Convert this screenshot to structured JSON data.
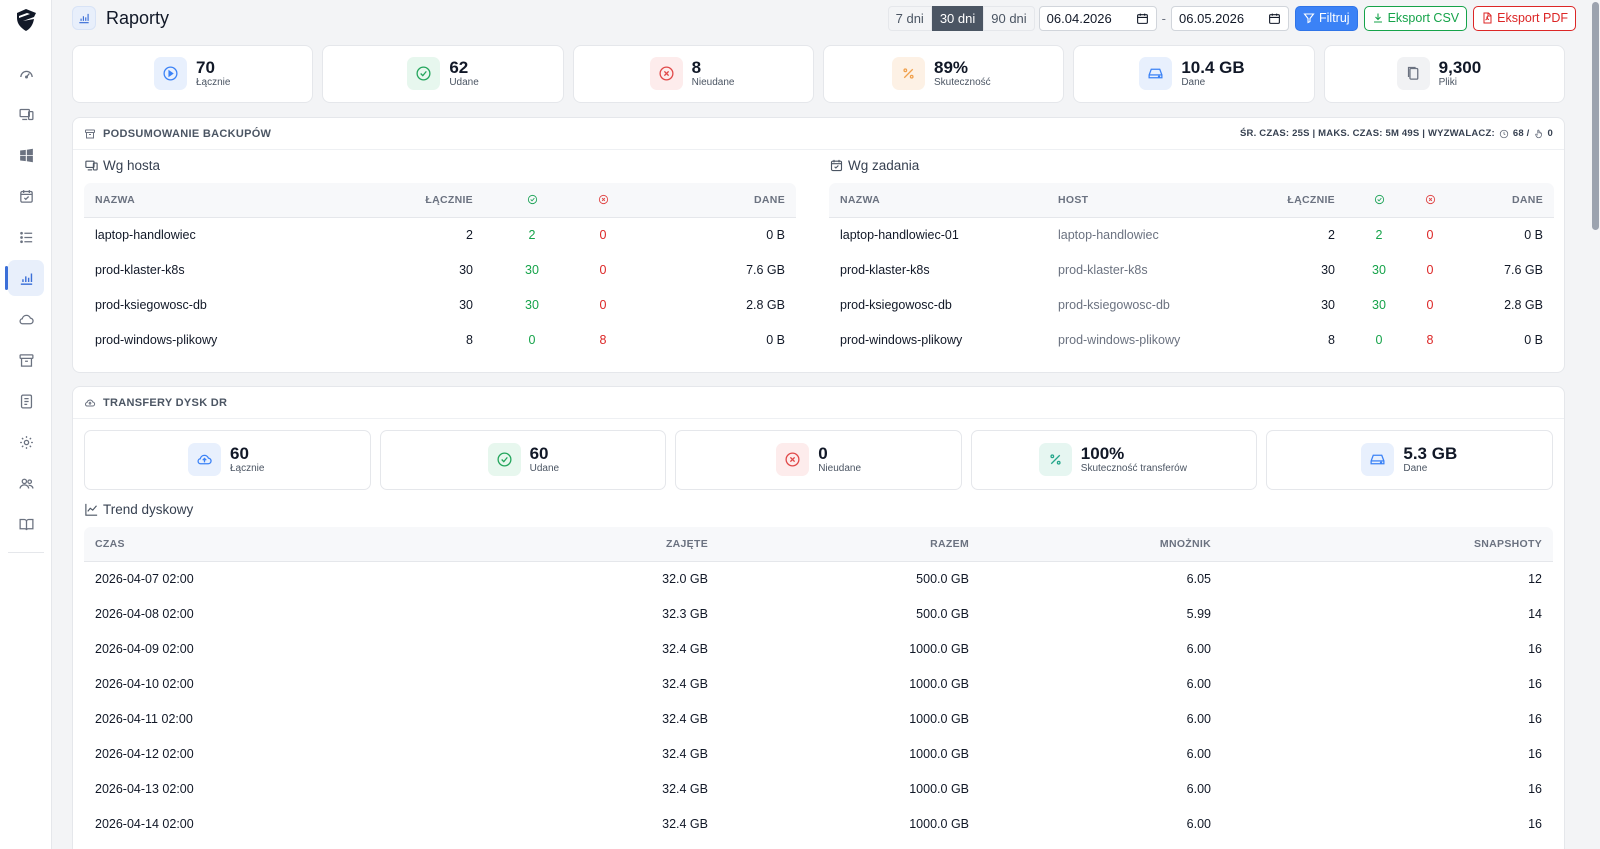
{
  "header": {
    "title": "Raporty",
    "ranges": [
      "7 dni",
      "30 dni",
      "90 dni"
    ],
    "active_range": "30 dni",
    "date_from": "06.04.2026",
    "date_to": "06.05.2026",
    "date_separator": "-",
    "filter_label": "Filtruj",
    "csv_label": "Eksport CSV",
    "pdf_label": "Eksport PDF"
  },
  "stats": [
    {
      "value": "70",
      "label": "Łącznie",
      "icon": "play-circle-icon",
      "bg": "#e8f0fd",
      "color": "#3b82f6"
    },
    {
      "value": "62",
      "label": "Udane",
      "icon": "check-circle-icon",
      "bg": "#e7f7ee",
      "color": "#22a55b"
    },
    {
      "value": "8",
      "label": "Nieudane",
      "icon": "x-circle-icon",
      "bg": "#fdecec",
      "color": "#e04848"
    },
    {
      "value": "89%",
      "label": "Skuteczność",
      "icon": "percent-icon",
      "bg": "#fdf1e5",
      "color": "#f0a04b"
    },
    {
      "value": "10.4 GB",
      "label": "Dane",
      "icon": "drive-icon",
      "bg": "#e8f0fd",
      "color": "#3b82f6"
    },
    {
      "value": "9,300",
      "label": "Pliki",
      "icon": "files-icon",
      "bg": "#f1f2f4",
      "color": "#6b7280"
    }
  ],
  "summary": {
    "title": "PODSUMOWANIE BACKUPÓW",
    "meta": "ŚR. CZAS: 25S | MAKS. CZAS: 5M 49S | WYZWALACZ:",
    "meta_scheduled": "68 /",
    "meta_manual": "0",
    "by_host": {
      "title": "Wg hosta",
      "columns": [
        "NAZWA",
        "ŁĄCZNIE",
        "DANE"
      ],
      "rows": [
        {
          "name": "laptop-handlowiec",
          "total": "2",
          "ok": "2",
          "fail": "0",
          "data": "0 B"
        },
        {
          "name": "prod-klaster-k8s",
          "total": "30",
          "ok": "30",
          "fail": "0",
          "data": "7.6 GB"
        },
        {
          "name": "prod-ksiegowosc-db",
          "total": "30",
          "ok": "30",
          "fail": "0",
          "data": "2.8 GB"
        },
        {
          "name": "prod-windows-plikowy",
          "total": "8",
          "ok": "0",
          "fail": "8",
          "data": "0 B"
        }
      ]
    },
    "by_job": {
      "title": "Wg zadania",
      "columns": [
        "NAZWA",
        "HOST",
        "ŁĄCZNIE",
        "DANE"
      ],
      "rows": [
        {
          "name": "laptop-handlowiec-01",
          "host": "laptop-handlowiec",
          "total": "2",
          "ok": "2",
          "fail": "0",
          "data": "0 B"
        },
        {
          "name": "prod-klaster-k8s",
          "host": "prod-klaster-k8s",
          "total": "30",
          "ok": "30",
          "fail": "0",
          "data": "7.6 GB"
        },
        {
          "name": "prod-ksiegowosc-db",
          "host": "prod-ksiegowosc-db",
          "total": "30",
          "ok": "30",
          "fail": "0",
          "data": "2.8 GB"
        },
        {
          "name": "prod-windows-plikowy",
          "host": "prod-windows-plikowy",
          "total": "8",
          "ok": "0",
          "fail": "8",
          "data": "0 B"
        }
      ]
    }
  },
  "dr": {
    "title": "TRANSFERY DYSK DR",
    "stats": [
      {
        "value": "60",
        "label": "Łącznie",
        "icon": "cloud-upload-icon",
        "bg": "#e8f0fd",
        "color": "#3b82f6"
      },
      {
        "value": "60",
        "label": "Udane",
        "icon": "check-circle-icon",
        "bg": "#e7f7ee",
        "color": "#22a55b"
      },
      {
        "value": "0",
        "label": "Nieudane",
        "icon": "x-circle-icon",
        "bg": "#fdecec",
        "color": "#e04848"
      },
      {
        "value": "100%",
        "label": "Skuteczność transferów",
        "icon": "percent-icon",
        "bg": "#e6f6f1",
        "color": "#22a58a"
      },
      {
        "value": "5.3 GB",
        "label": "Dane",
        "icon": "drive-icon",
        "bg": "#e8f0fd",
        "color": "#3b82f6"
      }
    ],
    "trend": {
      "title": "Trend dyskowy",
      "columns": [
        "CZAS",
        "ZAJĘTE",
        "RAZEM",
        "MNOŻNIK",
        "SNAPSHOTY"
      ],
      "rows": [
        {
          "time": "2026-04-07 02:00",
          "used": "32.0 GB",
          "total": "500.0 GB",
          "mult": "6.05",
          "snaps": "12"
        },
        {
          "time": "2026-04-08 02:00",
          "used": "32.3 GB",
          "total": "500.0 GB",
          "mult": "5.99",
          "snaps": "14"
        },
        {
          "time": "2026-04-09 02:00",
          "used": "32.4 GB",
          "total": "1000.0 GB",
          "mult": "6.00",
          "snaps": "16"
        },
        {
          "time": "2026-04-10 02:00",
          "used": "32.4 GB",
          "total": "1000.0 GB",
          "mult": "6.00",
          "snaps": "16"
        },
        {
          "time": "2026-04-11 02:00",
          "used": "32.4 GB",
          "total": "1000.0 GB",
          "mult": "6.00",
          "snaps": "16"
        },
        {
          "time": "2026-04-12 02:00",
          "used": "32.4 GB",
          "total": "1000.0 GB",
          "mult": "6.00",
          "snaps": "16"
        },
        {
          "time": "2026-04-13 02:00",
          "used": "32.4 GB",
          "total": "1000.0 GB",
          "mult": "6.00",
          "snaps": "16"
        },
        {
          "time": "2026-04-14 02:00",
          "used": "32.4 GB",
          "total": "1000.0 GB",
          "mult": "6.00",
          "snaps": "16"
        }
      ]
    }
  },
  "sidebar": {
    "items": [
      {
        "icon": "dashboard-icon"
      },
      {
        "icon": "devices-icon"
      },
      {
        "icon": "windows-icon"
      },
      {
        "icon": "calendar-check-icon"
      },
      {
        "icon": "list-icon"
      },
      {
        "icon": "bar-chart-icon",
        "active": true
      },
      {
        "icon": "cloud-icon"
      },
      {
        "icon": "archive-icon"
      },
      {
        "icon": "document-icon"
      },
      {
        "icon": "gear-icon"
      },
      {
        "icon": "users-icon"
      },
      {
        "icon": "book-icon"
      }
    ]
  }
}
